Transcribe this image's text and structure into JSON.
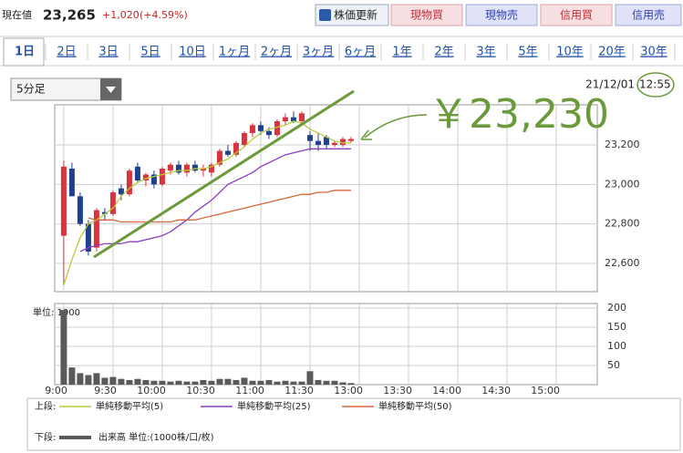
{
  "header": {
    "label": "現在値",
    "price": "23,265",
    "change": "+1,020",
    "change_pct": "(+4.59%)"
  },
  "buttons": [
    "株価更新",
    "現物買",
    "現物売",
    "信用買",
    "信用売"
  ],
  "tabs": [
    "1日",
    "2日",
    "3日",
    "5日",
    "10日",
    "1ヶ月",
    "2ヶ月",
    "3ヶ月",
    "6ヶ月",
    "1年",
    "2年",
    "3年",
    "5年",
    "10年",
    "20年",
    "30年"
  ],
  "interval": "5分足",
  "timestamp": {
    "date": "21/12/01",
    "time": "12:55"
  },
  "annotation": "￥23,230",
  "legend": {
    "upper": "上段:",
    "lower": "下段:"
  },
  "chart_data": [
    {
      "type": "candlestick",
      "x": [
        0,
        1,
        2,
        3,
        4,
        5,
        6,
        7,
        8,
        9,
        10,
        11,
        12,
        13,
        14,
        15,
        16,
        17,
        18,
        19,
        20,
        21,
        22,
        23,
        24,
        25,
        26,
        27,
        28,
        29,
        30,
        31,
        32,
        33,
        34,
        35
      ],
      "open": [
        22740,
        23080,
        22940,
        22800,
        22680,
        22860,
        22850,
        22980,
        22950,
        23090,
        23020,
        23050,
        23000,
        23070,
        23100,
        23060,
        23100,
        23070,
        23060,
        23100,
        23170,
        23150,
        23200,
        23260,
        23300,
        23270,
        23250,
        23320,
        23340,
        23320,
        23250,
        23220,
        23240,
        23200,
        23200,
        23220
      ],
      "high": [
        23120,
        23110,
        22960,
        22820,
        22880,
        22880,
        22970,
        23000,
        23080,
        23110,
        23060,
        23070,
        23090,
        23110,
        23120,
        23110,
        23120,
        23100,
        23110,
        23180,
        23200,
        23220,
        23270,
        23310,
        23320,
        23290,
        23330,
        23360,
        23370,
        23370,
        23270,
        23260,
        23250,
        23220,
        23240,
        23240
      ],
      "low": [
        22490,
        22940,
        22790,
        22640,
        22660,
        22820,
        22840,
        22920,
        22940,
        23010,
        22990,
        22980,
        22990,
        23050,
        23050,
        23040,
        23060,
        23040,
        23040,
        23090,
        23140,
        23140,
        23190,
        23240,
        23250,
        23230,
        23240,
        23300,
        23310,
        23310,
        23170,
        23170,
        23180,
        23190,
        23190,
        23210
      ],
      "close": [
        23090,
        22940,
        22800,
        22660,
        22870,
        22850,
        22960,
        22950,
        23070,
        23020,
        23050,
        23000,
        23080,
        23100,
        23060,
        23100,
        23070,
        23080,
        23100,
        23170,
        23150,
        23210,
        23260,
        23300,
        23270,
        23250,
        23320,
        23340,
        23320,
        23360,
        23220,
        23200,
        23200,
        23210,
        23230,
        23230
      ],
      "up_color": "#d8333f",
      "down_color": "#1f3f8f",
      "series": [
        {
          "name": "単純移動平均(5)",
          "color": "#b8cc3a",
          "values": [
            22490,
            22620,
            22730,
            22800,
            22820,
            22850,
            22880,
            22940,
            22980,
            23010,
            23030,
            23040,
            23050,
            23060,
            23070,
            23070,
            23080,
            23080,
            23090,
            23110,
            23130,
            23160,
            23190,
            23230,
            23260,
            23280,
            23290,
            23300,
            23320,
            23310,
            23280,
            23260,
            23240,
            23220,
            23210,
            23210
          ]
        },
        {
          "name": "単純移動平均(25)",
          "color": "#8a3fc4",
          "values": [
            null,
            null,
            22660,
            22680,
            22690,
            22700,
            22700,
            22700,
            22710,
            22710,
            22720,
            22730,
            22740,
            22760,
            22790,
            22820,
            22860,
            22890,
            22920,
            22960,
            23000,
            23020,
            23040,
            23060,
            23090,
            23110,
            23130,
            23150,
            23160,
            23170,
            23180,
            23180,
            23180,
            23180,
            23180,
            23180
          ]
        },
        {
          "name": "単純移動平均(50)",
          "color": "#d9663a",
          "values": [
            null,
            null,
            null,
            22830,
            22820,
            22820,
            22820,
            22810,
            22810,
            22810,
            22810,
            22810,
            22810,
            22810,
            22820,
            22820,
            22820,
            22830,
            22840,
            22850,
            22860,
            22870,
            22880,
            22890,
            22900,
            22910,
            22920,
            22930,
            22940,
            22950,
            22950,
            22960,
            22960,
            22970,
            22970,
            22970
          ]
        }
      ],
      "xlim": [
        -1.1,
        65
      ],
      "ylim": [
        22457,
        23403
      ],
      "yticks": [
        {
          "value": 22600,
          "label": "22,600"
        },
        {
          "value": 22800,
          "label": "22,800"
        },
        {
          "value": 23000,
          "label": "23,000"
        },
        {
          "value": 23200,
          "label": "23,200"
        }
      ],
      "grid": true
    },
    {
      "type": "bar",
      "unit_label": "単位: 1000",
      "x": [
        0,
        1,
        2,
        3,
        4,
        5,
        6,
        7,
        8,
        9,
        10,
        11,
        12,
        13,
        14,
        15,
        16,
        17,
        18,
        19,
        20,
        21,
        22,
        23,
        24,
        25,
        26,
        27,
        28,
        29,
        30,
        31,
        32,
        33,
        34,
        35
      ],
      "series": [
        {
          "name": "出来高 単位:(1000株/口/枚)",
          "color": "#5a5a5a",
          "values": [
            195,
            45,
            30,
            25,
            30,
            18,
            20,
            15,
            12,
            15,
            12,
            10,
            10,
            8,
            10,
            8,
            8,
            12,
            10,
            15,
            15,
            12,
            18,
            10,
            10,
            12,
            8,
            10,
            8,
            8,
            35,
            12,
            10,
            10,
            6,
            4
          ]
        }
      ],
      "xlim": [
        -1.1,
        65
      ],
      "ylim": [
        0,
        212
      ],
      "yticks": [
        50,
        100,
        150,
        200
      ],
      "xticks": [
        {
          "value": 0,
          "label": "9:00"
        },
        {
          "value": 6,
          "label": "9:30"
        },
        {
          "value": 12,
          "label": "10:00"
        },
        {
          "value": 18,
          "label": "10:30"
        },
        {
          "value": 24,
          "label": "11:00"
        },
        {
          "value": 30,
          "label": "11:30"
        },
        {
          "value": 36,
          "label": "13:00"
        },
        {
          "value": 42,
          "label": "13:30"
        },
        {
          "value": 48,
          "label": "14:00"
        },
        {
          "value": 54,
          "label": "14:30"
        },
        {
          "value": 60,
          "label": "15:00"
        }
      ],
      "grid": true
    }
  ]
}
